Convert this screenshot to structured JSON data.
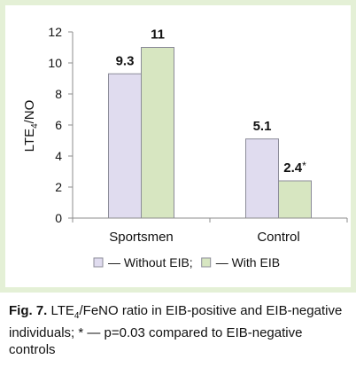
{
  "colors": {
    "panel_bg": "#e4f0d6",
    "plot_bg": "#ffffff",
    "without_eib": "#e0dcef",
    "with_eib": "#d7e6c1",
    "bar_stroke": "#8c8c99"
  },
  "chart_data": {
    "type": "bar",
    "categories": [
      "Sportsmen",
      "Control"
    ],
    "series": [
      {
        "name": "— Without EIB;",
        "values": [
          9.3,
          5.1
        ],
        "labels": [
          "9.3",
          "5.1"
        ]
      },
      {
        "name": "— With EIB",
        "values": [
          11,
          2.4
        ],
        "labels": [
          "11",
          "2.4*"
        ]
      }
    ],
    "ylabel_main": "LTE",
    "ylabel_sub": "4",
    "ylabel_rest": "/NO",
    "ylim": [
      0,
      12
    ],
    "yticks": [
      0,
      2,
      4,
      6,
      8,
      10,
      12
    ],
    "grid": false,
    "legend_position": "bottom"
  },
  "caption": {
    "label": "Fig. 7.",
    "text_a": " LTE",
    "sub": "4",
    "text_b": "/FeNO ratio in EIB-positive and EIB-negative individuals; * — p=0.03 compared to EIB-negative controls"
  }
}
